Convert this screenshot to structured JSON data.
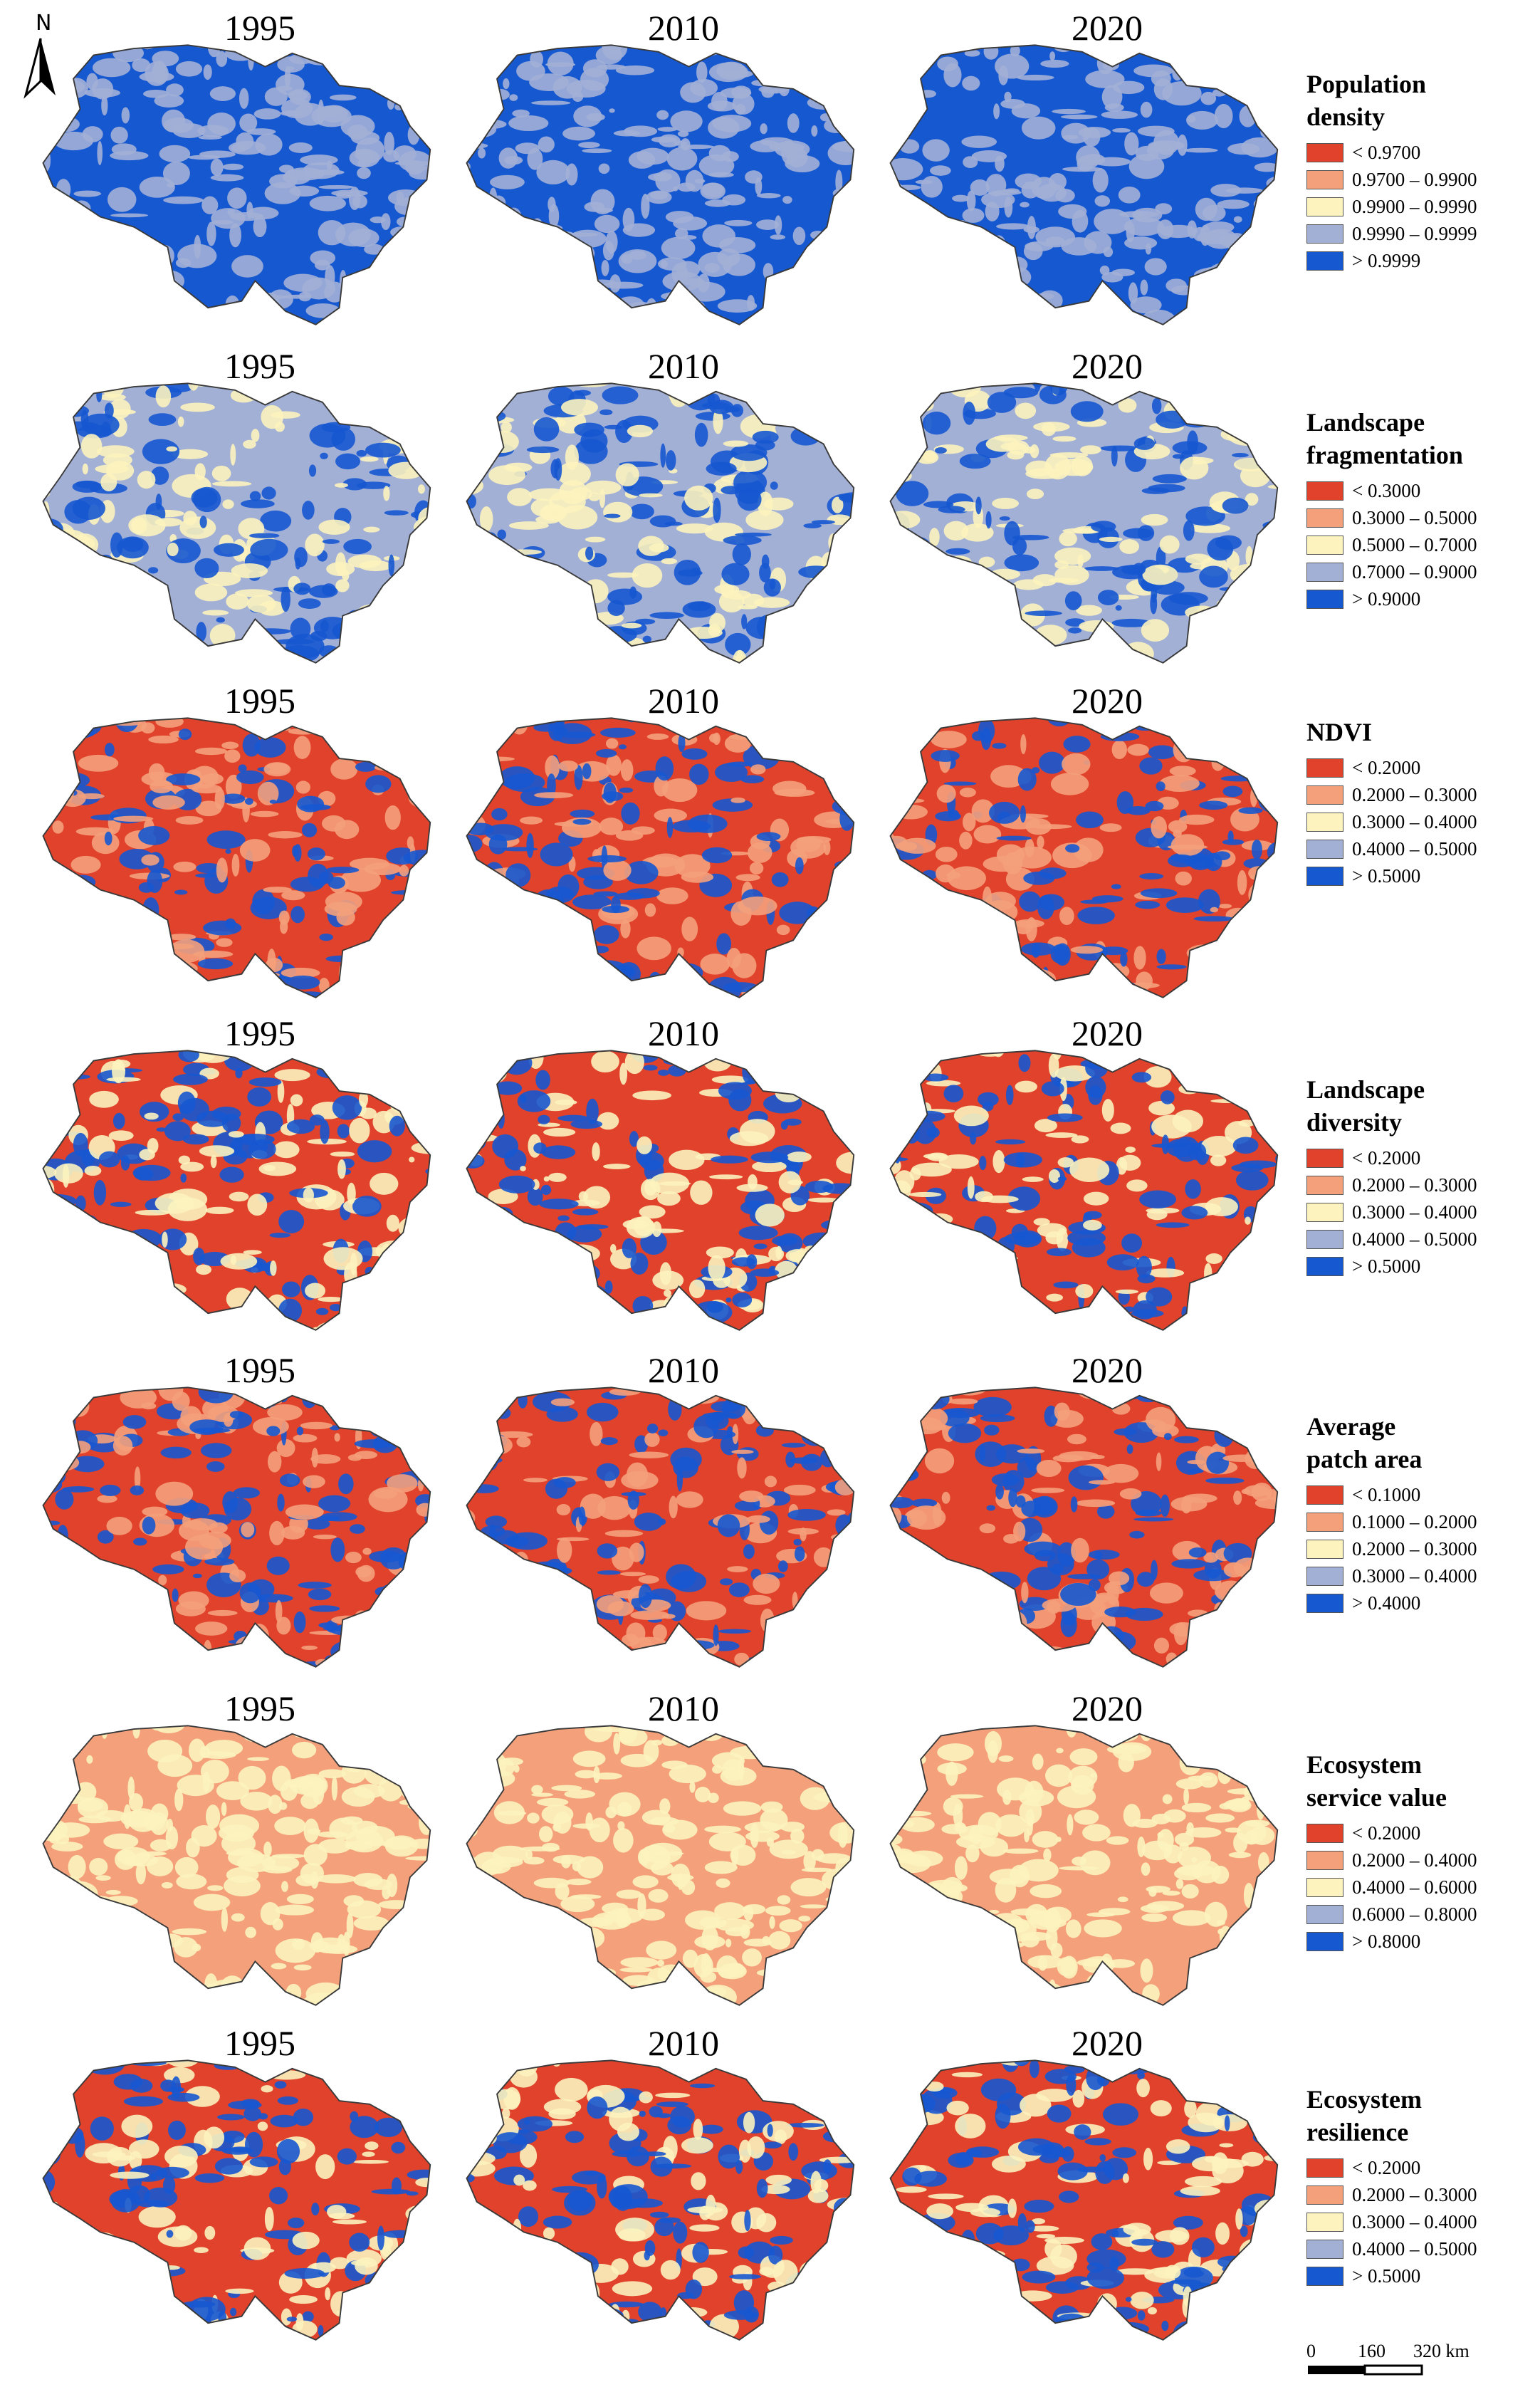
{
  "north_arrow": {
    "label": "N"
  },
  "scale": {
    "ticks": [
      "0",
      "160",
      "320 km"
    ]
  },
  "palette": {
    "red": "#e0422c",
    "orange": "#f4a07b",
    "yellow": "#fcf3be",
    "lightblue": "#a2b0d6",
    "blue": "#1658d0"
  },
  "years": [
    "1995",
    "2010",
    "2020"
  ],
  "rows": [
    {
      "title": "Population density",
      "title_lines": [
        "Population",
        "density"
      ],
      "classes": [
        "< 0.9700",
        "0.9700 – 0.9900",
        "0.9900 – 0.9990",
        "0.9990 – 0.9999",
        "> 0.9999"
      ],
      "dominant": [
        "blue",
        "lightblue"
      ]
    },
    {
      "title": "Landscape fragmentation",
      "title_lines": [
        "Landscape",
        "fragmentation"
      ],
      "classes": [
        "< 0.3000",
        "0.3000 – 0.5000",
        "0.5000 – 0.7000",
        "0.7000 – 0.9000",
        "> 0.9000"
      ],
      "dominant": [
        "lightblue",
        "blue",
        "yellow"
      ]
    },
    {
      "title": "NDVI",
      "title_lines": [
        "NDVI"
      ],
      "classes": [
        "< 0.2000",
        "0.2000 – 0.3000",
        "0.3000 – 0.4000",
        "0.4000 – 0.5000",
        "> 0.5000"
      ],
      "dominant": [
        "red",
        "blue",
        "orange"
      ]
    },
    {
      "title": "Landscape diversity",
      "title_lines": [
        "Landscape",
        "diversity"
      ],
      "classes": [
        "< 0.2000",
        "0.2000 – 0.3000",
        "0.3000 – 0.4000",
        "0.4000 – 0.5000",
        "> 0.5000"
      ],
      "dominant": [
        "red",
        "yellow",
        "blue"
      ]
    },
    {
      "title": "Average patch area",
      "title_lines": [
        "Average",
        "patch area"
      ],
      "classes": [
        "< 0.1000",
        "0.1000 – 0.2000",
        "0.2000 – 0.3000",
        "0.3000 – 0.4000",
        "> 0.4000"
      ],
      "dominant": [
        "red",
        "orange",
        "blue"
      ]
    },
    {
      "title": "Ecosystem service value",
      "title_lines": [
        "Ecosystem",
        "service value"
      ],
      "classes": [
        "< 0.2000",
        "0.2000 – 0.4000",
        "0.4000 – 0.6000",
        "0.6000 – 0.8000",
        "> 0.8000"
      ],
      "dominant": [
        "orange",
        "yellow"
      ]
    },
    {
      "title": "Ecosystem resilience",
      "title_lines": [
        "Ecosystem",
        "resilience"
      ],
      "classes": [
        "< 0.2000",
        "0.2000 – 0.3000",
        "0.3000 – 0.4000",
        "0.4000 – 0.5000",
        "> 0.5000"
      ],
      "dominant": [
        "red",
        "yellow",
        "blue"
      ]
    }
  ]
}
